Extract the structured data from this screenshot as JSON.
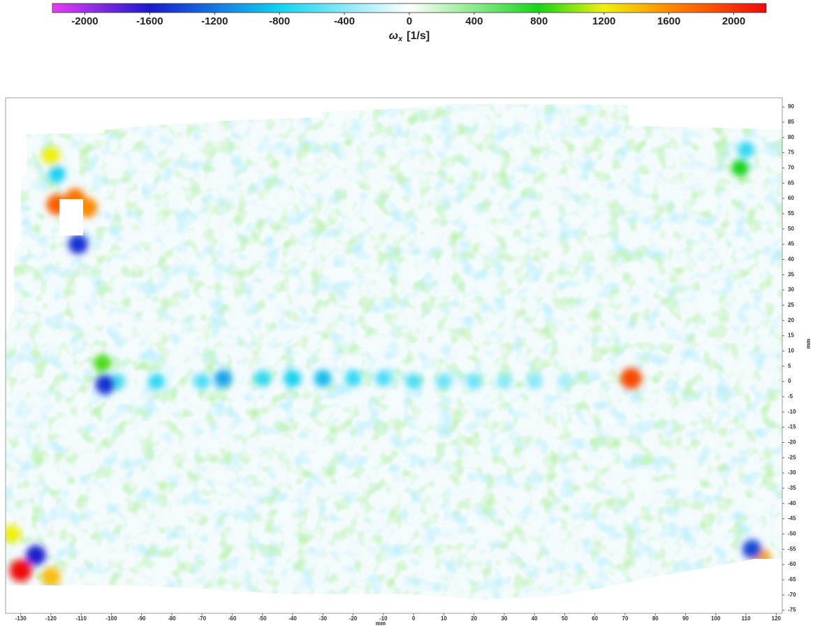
{
  "chart_data": {
    "type": "heatmap",
    "colorbar": {
      "range": [
        -2200,
        2200
      ],
      "ticks": [
        -2000,
        -1600,
        -1200,
        -800,
        -400,
        0,
        400,
        800,
        1200,
        1600,
        2000
      ],
      "label": {
        "symbol": "ω",
        "subscript": "x",
        "unit": "[1/s]"
      },
      "colorscale": [
        [
          -2200,
          "#e83cf5"
        ],
        [
          -1600,
          "#1a1acc"
        ],
        [
          -800,
          "#12d2f0"
        ],
        [
          0,
          "#ffffff"
        ],
        [
          800,
          "#18d418"
        ],
        [
          1200,
          "#f0f010"
        ],
        [
          1600,
          "#ff8a00"
        ],
        [
          2200,
          "#ee0a0a"
        ]
      ]
    },
    "xlabel": "mm",
    "ylabel": "mm",
    "xlim": [
      -135,
      122
    ],
    "ylim": [
      -76,
      93
    ],
    "xticks": [
      -130,
      -120,
      -110,
      -100,
      -90,
      -80,
      -70,
      -60,
      -50,
      -40,
      -30,
      -20,
      -10,
      0,
      10,
      20,
      30,
      40,
      50,
      60,
      70,
      80,
      90,
      100,
      110,
      120
    ],
    "yticks": [
      -75,
      -70,
      -65,
      -60,
      -55,
      -50,
      -45,
      -40,
      -35,
      -30,
      -25,
      -20,
      -15,
      -10,
      -5,
      0,
      5,
      10,
      15,
      20,
      25,
      30,
      35,
      40,
      45,
      50,
      55,
      60,
      65,
      70,
      75,
      80,
      85,
      90
    ],
    "spots": {
      "x": [
        72,
        -98,
        -85,
        -70,
        -63,
        -50,
        -40,
        -30,
        -20,
        -10,
        0,
        10,
        20,
        30,
        40,
        50,
        -102,
        -103,
        -112,
        -118,
        -108,
        -111,
        -118,
        -120,
        108,
        110,
        -130,
        -125,
        -120,
        115,
        112,
        -133
      ],
      "y": [
        1,
        0,
        0,
        0,
        1,
        1,
        1,
        1,
        1,
        1,
        0,
        0,
        0,
        0,
        0,
        0,
        -1,
        6,
        60,
        58,
        57,
        45,
        68,
        74,
        70,
        76,
        -62,
        -57,
        -64,
        -58,
        -55,
        -50
      ],
      "values": [
        1900,
        -600,
        -700,
        -600,
        -1000,
        -700,
        -800,
        -900,
        -700,
        -600,
        -600,
        -500,
        -500,
        -400,
        -400,
        -300,
        -1500,
        900,
        1700,
        1800,
        1600,
        -1500,
        -800,
        1200,
        800,
        -700,
        2200,
        -1600,
        1400,
        1500,
        -1400,
        1200
      ]
    }
  }
}
